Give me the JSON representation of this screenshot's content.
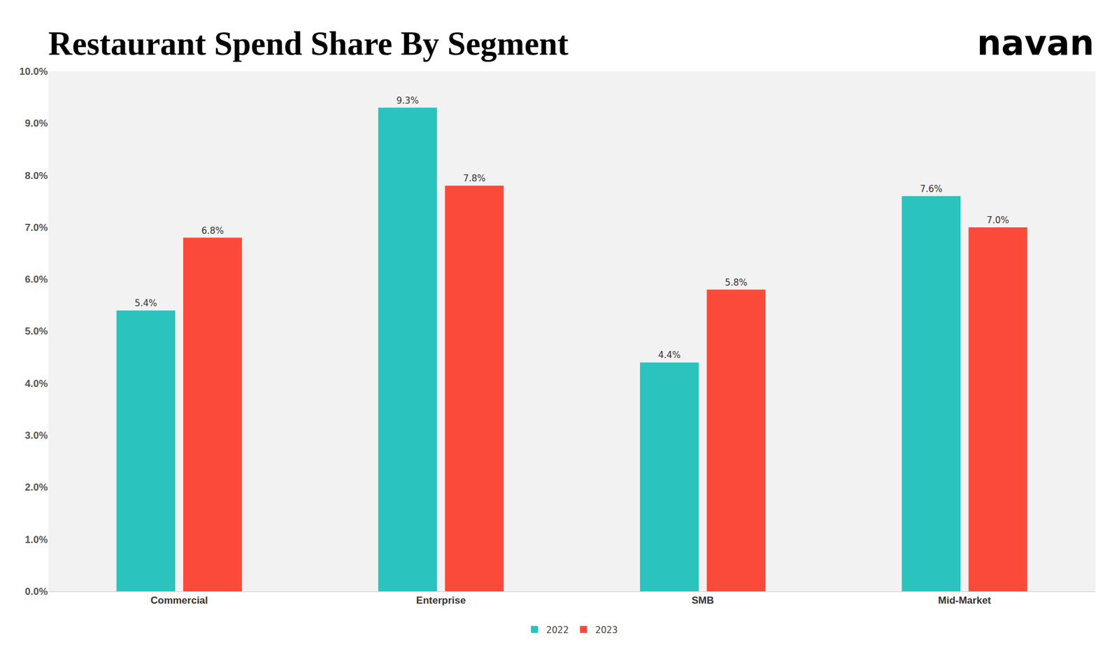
{
  "chart_data": {
    "type": "bar",
    "title": "Restaurant Spend Share By Segment",
    "brand": "navan",
    "categories": [
      "Commercial",
      "Enterprise",
      "SMB",
      "Mid-Market"
    ],
    "series": [
      {
        "name": "2022",
        "color": "#2ac3be",
        "values": [
          5.4,
          9.3,
          4.4,
          7.6
        ],
        "value_labels": [
          "5.4%",
          "9.3%",
          "4.4%",
          "7.6%"
        ]
      },
      {
        "name": "2023",
        "color": "#fb4a3a",
        "values": [
          6.8,
          7.8,
          5.8,
          7.0
        ],
        "value_labels": [
          "6.8%",
          "7.8%",
          "5.8%",
          "7.0%"
        ]
      }
    ],
    "ylim": [
      0,
      10
    ],
    "yticks": [
      {
        "value": 0,
        "label": "0.0%"
      },
      {
        "value": 1,
        "label": "1.0%"
      },
      {
        "value": 2,
        "label": "2.0%"
      },
      {
        "value": 3,
        "label": "3.0%"
      },
      {
        "value": 4,
        "label": "4.0%"
      },
      {
        "value": 5,
        "label": "5.0%"
      },
      {
        "value": 6,
        "label": "6.0%"
      },
      {
        "value": 7,
        "label": "7.0%"
      },
      {
        "value": 8,
        "label": "8.0%"
      },
      {
        "value": 9,
        "label": "9.0%"
      },
      {
        "value": 10,
        "label": "10.0%"
      }
    ],
    "grid": false,
    "legend": "bottom",
    "data_labels": true
  }
}
